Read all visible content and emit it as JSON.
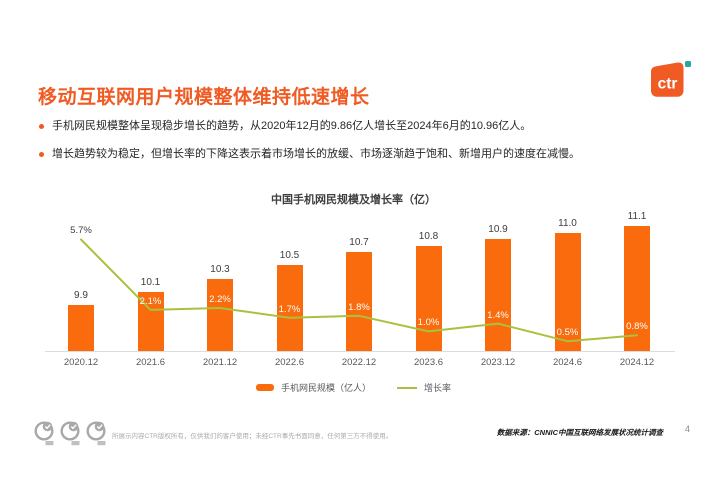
{
  "slide": {
    "title": "移动互联网用户规模整体维持低速增长",
    "bullets": [
      "手机网民规模整体呈现稳步增长的趋势，从2020年12月的9.86亿人增长至2024年6月的10.96亿人。",
      "增长趋势较为稳定，但增长率的下降这表示着市场增长的放缓、市场逐渐趋于饱和、新增用户的速度在减慢。"
    ],
    "logo": {
      "text": "ctr"
    },
    "footer": {
      "disclaimer": "所展示内容CTR版权所有，仅供我们的客户使用；未经CTR事先书面同意，任何第三方不得使用。",
      "source": "数据来源：CNNIC中国互联网络发展状况统计调查",
      "page_number": "4"
    },
    "colors": {
      "title_orange": "#F05A23",
      "bar_orange": "#F96B0D",
      "line_green": "#A9C13E",
      "logo_mark_teal": "#2FA3A0"
    }
  },
  "chart_data": {
    "type": "bar",
    "subtype": "bar-line-combo",
    "title": "中国手机网民规模及增长率（亿）",
    "categories": [
      "2020.12",
      "2021.6",
      "2021.12",
      "2022.6",
      "2022.12",
      "2023.6",
      "2023.12",
      "2024.6",
      "2024.12"
    ],
    "series": [
      {
        "name": "手机网民规模（亿人）",
        "type": "bar",
        "values": [
          9.9,
          10.1,
          10.3,
          10.5,
          10.7,
          10.8,
          10.9,
          11.0,
          11.1
        ],
        "labels": [
          "9.9",
          "10.1",
          "10.3",
          "10.5",
          "10.7",
          "10.8",
          "10.9",
          "11.0",
          "11.1"
        ]
      },
      {
        "name": "增长率",
        "type": "line",
        "unit": "%",
        "values": [
          5.7,
          2.1,
          2.2,
          1.7,
          1.8,
          1.0,
          1.4,
          0.5,
          0.8
        ],
        "labels": [
          "5.7%",
          "2.1%",
          "2.2%",
          "1.7%",
          "1.8%",
          "1.0%",
          "1.4%",
          "0.5%",
          "0.8%"
        ]
      }
    ],
    "bar_ylim": [
      9.2,
      11.25
    ],
    "line_ylim": [
      0,
      6.9
    ],
    "grid": false,
    "value_axes_hidden": true,
    "legend_position": "bottom"
  }
}
